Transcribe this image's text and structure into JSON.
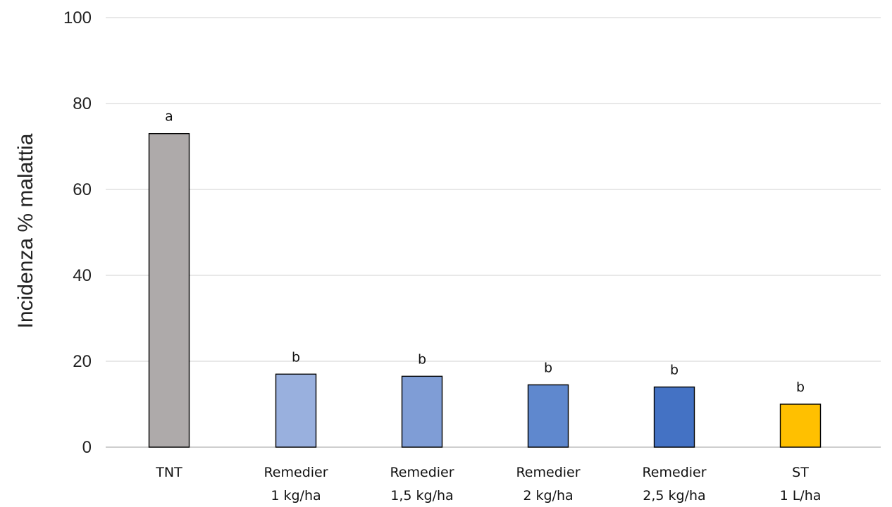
{
  "chart_data": {
    "type": "bar",
    "title": "",
    "xlabel": "",
    "ylabel": "Incidenza % malattia",
    "ylim": [
      0,
      100
    ],
    "yticks": [
      0,
      20,
      40,
      60,
      80,
      100
    ],
    "grid": true,
    "legend": "none",
    "categories": [
      [
        "TNT"
      ],
      [
        "Remedier",
        "1 kg/ha"
      ],
      [
        "Remedier",
        "1,5 kg/ha"
      ],
      [
        "Remedier",
        "2 kg/ha"
      ],
      [
        "Remedier",
        "2,5 kg/ha"
      ],
      [
        "ST",
        "1 L/ha"
      ]
    ],
    "values": [
      73,
      17,
      16.5,
      14.5,
      14,
      10
    ],
    "significance_letters": [
      "a",
      "b",
      "b",
      "b",
      "b",
      "b"
    ],
    "colors": [
      "#aeaaaa",
      "#99b0de",
      "#7f9dd6",
      "#5f88ce",
      "#4472c4",
      "#ffc000"
    ]
  }
}
